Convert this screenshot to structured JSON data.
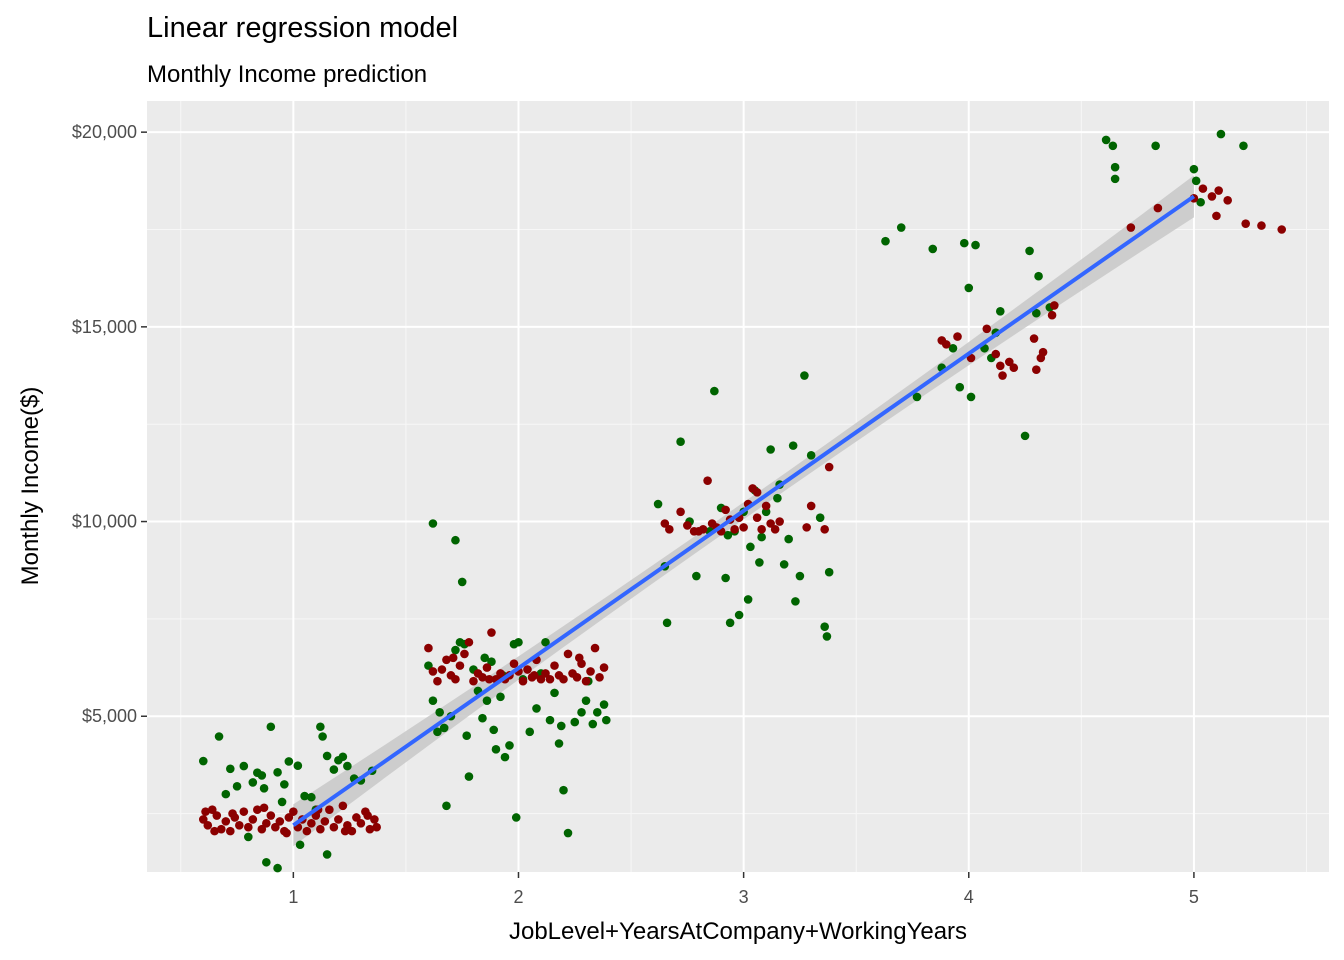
{
  "chart_data": {
    "type": "scatter",
    "title": "Linear regression model",
    "subtitle": "Monthly Income prediction",
    "xlabel": "JobLevel+YearsAtCompany+WorkingYears",
    "ylabel": "Monthly Income($)",
    "xlim": [
      0.35,
      5.6
    ],
    "ylim": [
      1000,
      20800
    ],
    "x_ticks": [
      1,
      2,
      3,
      4,
      5
    ],
    "x_tick_labels": [
      "1",
      "2",
      "3",
      "4",
      "5"
    ],
    "y_ticks": [
      5000,
      10000,
      15000,
      20000
    ],
    "y_tick_labels": [
      "$5,000",
      "$10,000",
      "$15,000",
      "$20,000"
    ],
    "grid": true,
    "background": "#ebebeb",
    "colors": {
      "actual": "#006400",
      "predicted": "#8b0000",
      "fit": "#3366ff",
      "ribbon": "#c8c8c8"
    },
    "series": [
      {
        "color": "#006400",
        "points": [
          [
            0.6,
            3850
          ],
          [
            0.67,
            4480
          ],
          [
            0.72,
            3650
          ],
          [
            0.75,
            3200
          ],
          [
            0.78,
            3720
          ],
          [
            0.82,
            3300
          ],
          [
            0.84,
            3550
          ],
          [
            0.86,
            3480
          ],
          [
            0.87,
            3150
          ],
          [
            0.9,
            4730
          ],
          [
            0.93,
            3560
          ],
          [
            0.96,
            3250
          ],
          [
            0.98,
            3840
          ],
          [
            1.02,
            3730
          ],
          [
            1.08,
            2920
          ],
          [
            1.1,
            2600
          ],
          [
            1.12,
            4730
          ],
          [
            1.13,
            4480
          ],
          [
            1.15,
            3980
          ],
          [
            1.18,
            3630
          ],
          [
            1.2,
            3870
          ],
          [
            1.22,
            3960
          ],
          [
            1.24,
            3720
          ],
          [
            1.27,
            3400
          ],
          [
            1.3,
            3350
          ],
          [
            1.35,
            3600
          ],
          [
            0.7,
            3000
          ],
          [
            0.95,
            2800
          ],
          [
            1.05,
            2950
          ],
          [
            0.8,
            1900
          ],
          [
            0.88,
            1250
          ],
          [
            0.93,
            1100
          ],
          [
            1.15,
            1450
          ],
          [
            1.03,
            1700
          ],
          [
            1.62,
            9950
          ],
          [
            1.72,
            9520
          ],
          [
            1.75,
            8450
          ],
          [
            1.62,
            5400
          ],
          [
            1.65,
            5100
          ],
          [
            1.67,
            4700
          ],
          [
            1.68,
            2700
          ],
          [
            1.72,
            6700
          ],
          [
            1.74,
            6900
          ],
          [
            1.76,
            6850
          ],
          [
            1.77,
            4500
          ],
          [
            1.78,
            3450
          ],
          [
            1.8,
            6200
          ],
          [
            1.82,
            5650
          ],
          [
            1.84,
            4950
          ],
          [
            1.86,
            5400
          ],
          [
            1.88,
            6400
          ],
          [
            1.89,
            4650
          ],
          [
            1.9,
            4150
          ],
          [
            1.92,
            5500
          ],
          [
            1.93,
            6050
          ],
          [
            1.94,
            3950
          ],
          [
            1.96,
            4250
          ],
          [
            1.98,
            6850
          ],
          [
            2.0,
            6900
          ],
          [
            1.99,
            2400
          ],
          [
            2.02,
            5950
          ],
          [
            2.05,
            4600
          ],
          [
            2.08,
            5200
          ],
          [
            2.12,
            6900
          ],
          [
            2.14,
            4900
          ],
          [
            2.16,
            5600
          ],
          [
            2.18,
            4300
          ],
          [
            2.19,
            4750
          ],
          [
            2.2,
            3100
          ],
          [
            2.22,
            2000
          ],
          [
            2.25,
            4850
          ],
          [
            2.28,
            5100
          ],
          [
            2.3,
            5400
          ],
          [
            2.31,
            5900
          ],
          [
            2.33,
            4800
          ],
          [
            2.35,
            5100
          ],
          [
            2.38,
            5300
          ],
          [
            2.39,
            4900
          ],
          [
            1.6,
            6300
          ],
          [
            1.64,
            4600
          ],
          [
            1.7,
            5000
          ],
          [
            1.85,
            6500
          ],
          [
            2.1,
            6100
          ],
          [
            2.62,
            10450
          ],
          [
            2.65,
            8850
          ],
          [
            2.66,
            7400
          ],
          [
            2.72,
            12050
          ],
          [
            2.76,
            10000
          ],
          [
            2.79,
            8600
          ],
          [
            2.85,
            9750
          ],
          [
            2.87,
            13350
          ],
          [
            2.9,
            10350
          ],
          [
            2.92,
            8550
          ],
          [
            2.94,
            7400
          ],
          [
            2.96,
            9750
          ],
          [
            2.98,
            7600
          ],
          [
            3.0,
            10250
          ],
          [
            3.02,
            8000
          ],
          [
            3.03,
            9350
          ],
          [
            3.05,
            10800
          ],
          [
            3.07,
            8950
          ],
          [
            3.08,
            9600
          ],
          [
            3.1,
            10250
          ],
          [
            3.12,
            11850
          ],
          [
            3.15,
            10600
          ],
          [
            3.18,
            8900
          ],
          [
            3.2,
            9550
          ],
          [
            3.22,
            11950
          ],
          [
            3.23,
            7950
          ],
          [
            3.25,
            8600
          ],
          [
            3.27,
            13750
          ],
          [
            3.3,
            11700
          ],
          [
            3.34,
            10100
          ],
          [
            3.36,
            7300
          ],
          [
            3.37,
            7050
          ],
          [
            3.38,
            8700
          ],
          [
            3.16,
            10950
          ],
          [
            2.93,
            9650
          ],
          [
            3.63,
            17200
          ],
          [
            3.7,
            17550
          ],
          [
            3.77,
            13200
          ],
          [
            3.84,
            17000
          ],
          [
            3.88,
            13950
          ],
          [
            3.93,
            14450
          ],
          [
            3.96,
            13450
          ],
          [
            3.98,
            17150
          ],
          [
            4.0,
            16000
          ],
          [
            4.01,
            13200
          ],
          [
            4.03,
            17100
          ],
          [
            4.07,
            14450
          ],
          [
            4.1,
            14200
          ],
          [
            4.12,
            14850
          ],
          [
            4.14,
            15400
          ],
          [
            4.25,
            12200
          ],
          [
            4.27,
            16950
          ],
          [
            4.31,
            16300
          ],
          [
            4.3,
            15350
          ],
          [
            4.36,
            15500
          ],
          [
            4.61,
            19800
          ],
          [
            4.64,
            19650
          ],
          [
            4.65,
            19100
          ],
          [
            4.65,
            18800
          ],
          [
            4.83,
            19650
          ],
          [
            5.0,
            19050
          ],
          [
            5.01,
            18750
          ],
          [
            5.12,
            19950
          ],
          [
            5.22,
            19650
          ],
          [
            5.03,
            18200
          ]
        ]
      },
      {
        "color": "#8b0000",
        "points": [
          [
            0.6,
            2350
          ],
          [
            0.62,
            2200
          ],
          [
            0.64,
            2600
          ],
          [
            0.66,
            2450
          ],
          [
            0.68,
            2100
          ],
          [
            0.7,
            2300
          ],
          [
            0.72,
            2050
          ],
          [
            0.74,
            2400
          ],
          [
            0.76,
            2200
          ],
          [
            0.78,
            2550
          ],
          [
            0.8,
            2150
          ],
          [
            0.82,
            2350
          ],
          [
            0.84,
            2600
          ],
          [
            0.86,
            2100
          ],
          [
            0.88,
            2250
          ],
          [
            0.9,
            2450
          ],
          [
            0.92,
            2150
          ],
          [
            0.94,
            2300
          ],
          [
            0.96,
            2050
          ],
          [
            0.98,
            2400
          ],
          [
            1.0,
            2550
          ],
          [
            1.02,
            2150
          ],
          [
            1.04,
            2350
          ],
          [
            1.06,
            2050
          ],
          [
            1.08,
            2250
          ],
          [
            1.1,
            2450
          ],
          [
            1.12,
            2100
          ],
          [
            1.14,
            2300
          ],
          [
            1.16,
            2600
          ],
          [
            1.18,
            2150
          ],
          [
            1.2,
            2350
          ],
          [
            1.22,
            2700
          ],
          [
            1.24,
            2200
          ],
          [
            1.26,
            2050
          ],
          [
            1.28,
            2400
          ],
          [
            1.3,
            2250
          ],
          [
            1.32,
            2550
          ],
          [
            1.34,
            2100
          ],
          [
            1.36,
            2350
          ],
          [
            1.37,
            2150
          ],
          [
            0.65,
            2050
          ],
          [
            0.73,
            2500
          ],
          [
            0.87,
            2650
          ],
          [
            0.97,
            2000
          ],
          [
            1.11,
            2600
          ],
          [
            1.23,
            2050
          ],
          [
            1.33,
            2450
          ],
          [
            0.61,
            2550
          ],
          [
            1.6,
            6750
          ],
          [
            1.62,
            6150
          ],
          [
            1.64,
            5900
          ],
          [
            1.66,
            6200
          ],
          [
            1.68,
            6450
          ],
          [
            1.7,
            6050
          ],
          [
            1.72,
            5950
          ],
          [
            1.74,
            6300
          ],
          [
            1.76,
            6600
          ],
          [
            1.78,
            6900
          ],
          [
            1.8,
            5900
          ],
          [
            1.82,
            6100
          ],
          [
            1.84,
            6000
          ],
          [
            1.86,
            6250
          ],
          [
            1.88,
            7150
          ],
          [
            1.9,
            5950
          ],
          [
            1.92,
            6100
          ],
          [
            1.94,
            5950
          ],
          [
            1.96,
            6050
          ],
          [
            1.98,
            6350
          ],
          [
            2.0,
            6150
          ],
          [
            2.02,
            5900
          ],
          [
            2.04,
            6200
          ],
          [
            2.06,
            6000
          ],
          [
            2.08,
            6450
          ],
          [
            2.1,
            5950
          ],
          [
            2.12,
            6100
          ],
          [
            2.14,
            5950
          ],
          [
            2.16,
            6300
          ],
          [
            2.18,
            6050
          ],
          [
            2.2,
            5950
          ],
          [
            2.22,
            6600
          ],
          [
            2.24,
            6100
          ],
          [
            2.26,
            6000
          ],
          [
            2.28,
            6350
          ],
          [
            2.3,
            5900
          ],
          [
            2.32,
            6150
          ],
          [
            2.34,
            6750
          ],
          [
            2.36,
            6000
          ],
          [
            2.38,
            6250
          ],
          [
            1.71,
            6500
          ],
          [
            1.87,
            5950
          ],
          [
            2.07,
            6050
          ],
          [
            2.27,
            6500
          ],
          [
            2.65,
            9950
          ],
          [
            2.67,
            9800
          ],
          [
            2.72,
            10250
          ],
          [
            2.75,
            9900
          ],
          [
            2.78,
            9750
          ],
          [
            2.82,
            9800
          ],
          [
            2.84,
            11050
          ],
          [
            2.86,
            9950
          ],
          [
            2.88,
            9850
          ],
          [
            2.9,
            9750
          ],
          [
            2.92,
            10300
          ],
          [
            2.94,
            10050
          ],
          [
            2.96,
            9800
          ],
          [
            2.98,
            10100
          ],
          [
            3.0,
            9850
          ],
          [
            3.02,
            10450
          ],
          [
            3.04,
            10850
          ],
          [
            3.06,
            10100
          ],
          [
            3.08,
            9800
          ],
          [
            3.1,
            10400
          ],
          [
            3.12,
            9950
          ],
          [
            3.14,
            9800
          ],
          [
            3.16,
            10000
          ],
          [
            3.28,
            9850
          ],
          [
            3.3,
            10400
          ],
          [
            3.36,
            9800
          ],
          [
            3.38,
            11400
          ],
          [
            3.06,
            10750
          ],
          [
            2.8,
            9750
          ],
          [
            3.88,
            14650
          ],
          [
            3.9,
            14550
          ],
          [
            3.95,
            14750
          ],
          [
            4.08,
            14950
          ],
          [
            4.12,
            14300
          ],
          [
            4.14,
            14000
          ],
          [
            4.15,
            13750
          ],
          [
            4.18,
            14100
          ],
          [
            4.2,
            13950
          ],
          [
            4.29,
            14700
          ],
          [
            4.3,
            13900
          ],
          [
            4.32,
            14200
          ],
          [
            4.33,
            14350
          ],
          [
            4.37,
            15300
          ],
          [
            4.38,
            15550
          ],
          [
            4.01,
            14200
          ],
          [
            4.72,
            17550
          ],
          [
            4.84,
            18050
          ],
          [
            5.04,
            18550
          ],
          [
            5.08,
            18350
          ],
          [
            5.1,
            17850
          ],
          [
            5.11,
            18500
          ],
          [
            5.15,
            18250
          ],
          [
            5.23,
            17650
          ],
          [
            5.3,
            17600
          ],
          [
            5.39,
            17500
          ],
          [
            5.0,
            18300
          ]
        ]
      }
    ],
    "fit": {
      "method": "lm",
      "x": [
        1.0,
        5.0
      ],
      "y": [
        2200,
        18350
      ],
      "ribbon_se": 400
    }
  }
}
